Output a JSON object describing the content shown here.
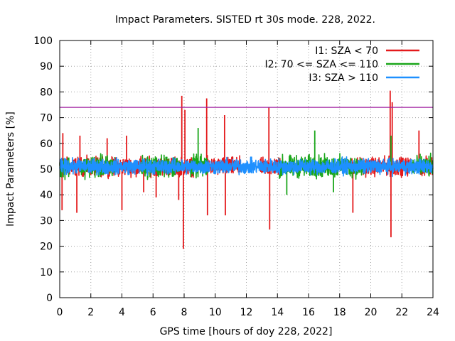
{
  "chart_data": {
    "type": "line",
    "title": "Impact Parameters. SISTED rt 30s mode. 228, 2022.",
    "xlabel": "GPS time [hours of doy 228, 2022]",
    "ylabel": "Impact Parameters [%]",
    "xlim": [
      0,
      24
    ],
    "ylim": [
      0,
      100
    ],
    "xticks": [
      0,
      2,
      4,
      6,
      8,
      10,
      12,
      14,
      16,
      18,
      20,
      22,
      24
    ],
    "yticks": [
      0,
      10,
      20,
      30,
      40,
      50,
      60,
      70,
      80,
      90,
      100
    ],
    "grid": true,
    "legend_position": "top-right",
    "threshold": {
      "value": 74,
      "color": "#a020a0"
    },
    "series": [
      {
        "name": "I1: SZA < 70",
        "color": "#e41a1c",
        "baseline": 51,
        "noise_amplitude": 5,
        "segments": [
          [
            0,
            1.6
          ],
          [
            1.6,
            3.5
          ],
          [
            3.5,
            8.6
          ],
          [
            9.4,
            11.6
          ],
          [
            12.9,
            14.4
          ],
          [
            18.6,
            22.6
          ],
          [
            23.2,
            24
          ]
        ],
        "spikes": [
          {
            "x": 0.15,
            "y": 34
          },
          {
            "x": 0.2,
            "y": 64
          },
          {
            "x": 1.1,
            "y": 33
          },
          {
            "x": 1.3,
            "y": 63
          },
          {
            "x": 3.05,
            "y": 62
          },
          {
            "x": 4.0,
            "y": 34
          },
          {
            "x": 4.3,
            "y": 63
          },
          {
            "x": 5.4,
            "y": 41
          },
          {
            "x": 6.2,
            "y": 39
          },
          {
            "x": 7.65,
            "y": 38
          },
          {
            "x": 7.85,
            "y": 78.5
          },
          {
            "x": 7.95,
            "y": 19
          },
          {
            "x": 8.05,
            "y": 73
          },
          {
            "x": 9.45,
            "y": 77.5
          },
          {
            "x": 9.5,
            "y": 32
          },
          {
            "x": 10.6,
            "y": 71
          },
          {
            "x": 10.65,
            "y": 32
          },
          {
            "x": 13.45,
            "y": 74
          },
          {
            "x": 13.5,
            "y": 26.5
          },
          {
            "x": 18.85,
            "y": 33
          },
          {
            "x": 21.25,
            "y": 80.5
          },
          {
            "x": 21.3,
            "y": 23.5
          },
          {
            "x": 21.38,
            "y": 76
          },
          {
            "x": 23.1,
            "y": 65
          }
        ]
      },
      {
        "name": "I2: 70 <= SZA <= 110",
        "color": "#1aa61a",
        "baseline": 51,
        "noise_amplitude": 6,
        "segments": [
          [
            0,
            0.6
          ],
          [
            1.3,
            3.6
          ],
          [
            5.2,
            7.8
          ],
          [
            8.4,
            9.6
          ],
          [
            14.1,
            19.6
          ],
          [
            22.6,
            24
          ]
        ],
        "spikes": [
          {
            "x": 8.9,
            "y": 66
          },
          {
            "x": 14.6,
            "y": 40
          },
          {
            "x": 16.4,
            "y": 65
          },
          {
            "x": 17.6,
            "y": 41
          },
          {
            "x": 21.3,
            "y": 63
          }
        ]
      },
      {
        "name": "I3: SZA > 110",
        "color": "#1e90ff",
        "baseline": 51,
        "noise_amplitude": 4.2,
        "segments": [
          [
            0,
            24
          ]
        ],
        "spikes": []
      }
    ]
  }
}
